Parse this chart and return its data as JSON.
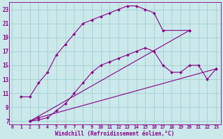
{
  "bg_color": "#cbe8ea",
  "line_color": "#880088",
  "grid_color": "#99cccc",
  "xlabel": "Windchill (Refroidissement éolien,°C)",
  "xlabel_color": "#880088",
  "ytick_labels": [
    "7",
    "9",
    "11",
    "13",
    "15",
    "17",
    "19",
    "21",
    "23"
  ],
  "yticks": [
    7,
    9,
    11,
    13,
    15,
    17,
    19,
    21,
    23
  ],
  "xticks": [
    0,
    1,
    2,
    3,
    4,
    5,
    6,
    7,
    8,
    9,
    10,
    11,
    12,
    13,
    14,
    15,
    16,
    17,
    18,
    19,
    20,
    21,
    22,
    23
  ],
  "xlim": [
    -0.3,
    23.5
  ],
  "ylim": [
    6.5,
    24.0
  ],
  "series": [
    {
      "x": [
        1,
        2,
        3,
        4,
        5,
        6,
        7,
        8,
        9,
        10,
        11,
        12,
        13,
        14,
        15,
        16,
        17,
        20
      ],
      "y": [
        10.5,
        10.5,
        12.5,
        14.0,
        16.5,
        18.0,
        19.5,
        21.0,
        21.5,
        22.0,
        22.5,
        23.0,
        23.5,
        23.5,
        23.0,
        22.5,
        20.0,
        20.0
      ]
    },
    {
      "x": [
        2,
        20
      ],
      "y": [
        7.0,
        20.0
      ]
    },
    {
      "comment": "middle curve: x=2,y=7, rises through markers to x=20,y=15, then x=21,y=15, x=22,y=13, x=23,y=14.5",
      "x": [
        2,
        3,
        4,
        5,
        6,
        7,
        8,
        9,
        10,
        11,
        12,
        13,
        14,
        15,
        16,
        17,
        18,
        19,
        20,
        21,
        22,
        23
      ],
      "y": [
        7.0,
        7.2,
        7.5,
        8.5,
        9.5,
        11.0,
        12.5,
        14.0,
        15.0,
        15.5,
        16.0,
        16.5,
        17.0,
        17.5,
        17.0,
        15.0,
        14.0,
        14.0,
        15.0,
        15.0,
        13.0,
        14.5
      ]
    },
    {
      "x": [
        2,
        3,
        23
      ],
      "y": [
        7.0,
        7.5,
        14.5
      ]
    }
  ]
}
